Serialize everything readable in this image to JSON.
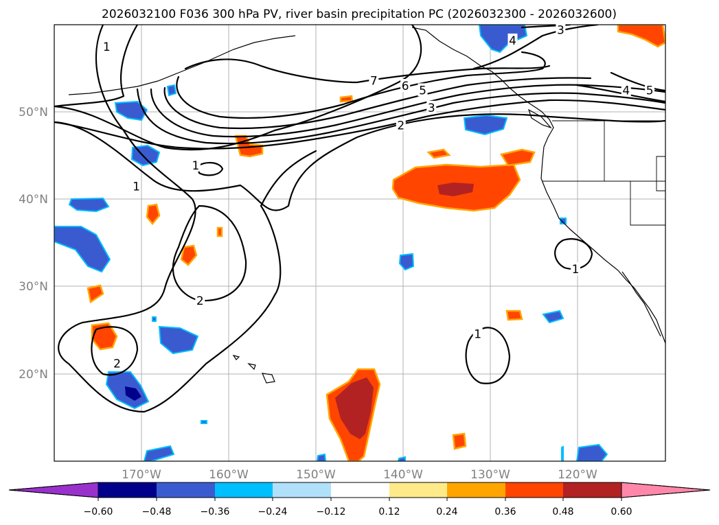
{
  "title": "2026032100 F036 300 hPa PV, river basin precipitation PC (2026032300 - 2026032600)",
  "map": {
    "lon_range": [
      -180,
      -110
    ],
    "lat_range": [
      10,
      60
    ],
    "lat_labels": [
      {
        "lat": 50,
        "text": "50°N"
      },
      {
        "lat": 40,
        "text": "40°N"
      },
      {
        "lat": 30,
        "text": "30°N"
      },
      {
        "lat": 20,
        "text": "20°N"
      }
    ],
    "lon_labels": [
      {
        "lon": -170,
        "text": "170°W"
      },
      {
        "lon": -160,
        "text": "160°W"
      },
      {
        "lon": -150,
        "text": "150°W"
      },
      {
        "lon": -140,
        "text": "140°W"
      },
      {
        "lon": -130,
        "text": "130°W"
      },
      {
        "lon": -120,
        "text": "120°W"
      }
    ],
    "contour_labels": [
      {
        "text": "1",
        "lon": -174,
        "lat": 57.5
      },
      {
        "text": "7",
        "lon": -143.4,
        "lat": 53.6
      },
      {
        "text": "6",
        "lon": -139.8,
        "lat": 53.0
      },
      {
        "text": "5",
        "lon": -137.8,
        "lat": 52.5
      },
      {
        "text": "3",
        "lon": -136.8,
        "lat": 50.5
      },
      {
        "text": "2",
        "lon": -140.3,
        "lat": 48.5
      },
      {
        "text": "3",
        "lon": -122,
        "lat": 59.4
      },
      {
        "text": "4",
        "lon": -127.5,
        "lat": 58.2
      },
      {
        "text": "4",
        "lon": -114.5,
        "lat": 52.5
      },
      {
        "text": "5",
        "lon": -111.8,
        "lat": 52.5
      },
      {
        "text": "1",
        "lon": -163.8,
        "lat": 43.9
      },
      {
        "text": "1",
        "lon": -170.6,
        "lat": 41.5
      },
      {
        "text": "2",
        "lon": -163.3,
        "lat": 28.4
      },
      {
        "text": "1",
        "lon": -120.3,
        "lat": 32.0
      },
      {
        "text": "1",
        "lon": -131.5,
        "lat": 24.6
      },
      {
        "text": "2",
        "lon": -172.8,
        "lat": 21.2
      }
    ]
  },
  "colorbar": {
    "ticks": [
      "−0.60",
      "−0.48",
      "−0.36",
      "−0.24",
      "−0.12",
      "0.12",
      "0.24",
      "0.36",
      "0.48",
      "0.60"
    ],
    "colors": [
      "#9932cc",
      "#00008b",
      "#3a5bd0",
      "#00bfff",
      "#b0e0fa",
      "#ffffff",
      "#ffea8a",
      "#ffa500",
      "#ff4500",
      "#b22222",
      "#ff88aa"
    ]
  },
  "precip_colors": {
    "neg_strong": "#00008b",
    "neg_mid": "#3a5bd0",
    "neg_edge": "#00bfff",
    "pos_edge": "#ffa500",
    "pos_mid": "#ff4500",
    "pos_strong": "#b22222"
  }
}
